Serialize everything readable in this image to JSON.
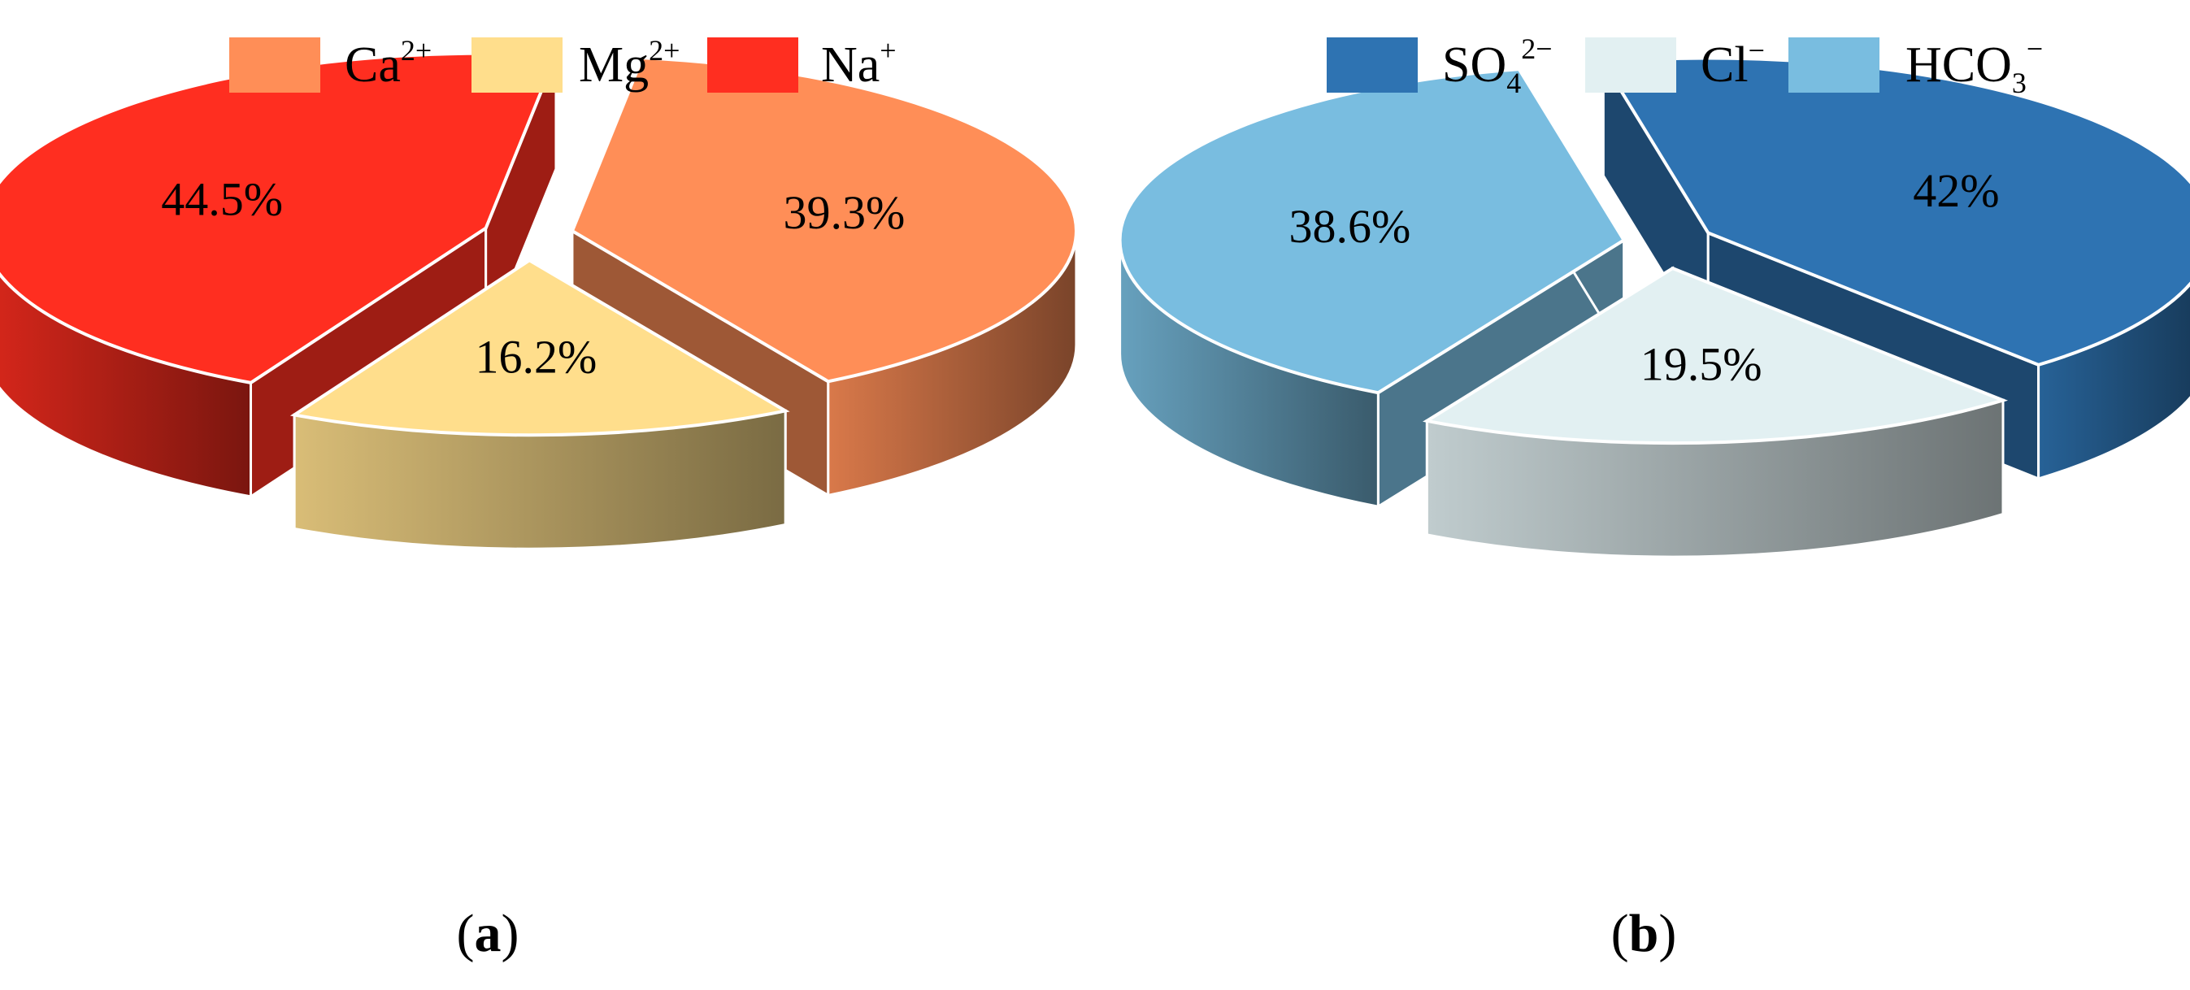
{
  "chart_data": [
    {
      "type": "pie",
      "panel_label": "(a)",
      "label_letter": "a",
      "legend_position": "top",
      "three_dimensional": true,
      "exploded": true,
      "slices": [
        {
          "key": "ca",
          "name_base": "Ca",
          "name_sup": "2+",
          "name_sub": "",
          "value": 39.3,
          "label": "39.3%",
          "color": "#FF8E57"
        },
        {
          "key": "mg",
          "name_base": "Mg",
          "name_sup": "2+",
          "name_sub": "",
          "value": 16.2,
          "label": "16.2%",
          "color": "#FFDE8C"
        },
        {
          "key": "na",
          "name_base": "Na",
          "name_sup": "+",
          "name_sub": "",
          "value": 44.5,
          "label": "44.5%",
          "color": "#FF2E20"
        }
      ]
    },
    {
      "type": "pie",
      "panel_label": "(b)",
      "label_letter": "b",
      "legend_position": "top",
      "three_dimensional": true,
      "exploded": true,
      "slices": [
        {
          "key": "so4",
          "name_base": "SO",
          "name_sub": "4",
          "name_sup": "2−",
          "value": 42,
          "label": "42%",
          "color": "#2E73B2"
        },
        {
          "key": "cl",
          "name_base": "Cl",
          "name_sub": "",
          "name_sup": "−",
          "value": 19.5,
          "label": "19.5%",
          "color": "#E2F0F2"
        },
        {
          "key": "hco3",
          "name_base": "HCO",
          "name_sub": "3",
          "name_sup": "−",
          "value": 38.6,
          "label": "38.6%",
          "color": "#79BDE0"
        }
      ]
    }
  ]
}
